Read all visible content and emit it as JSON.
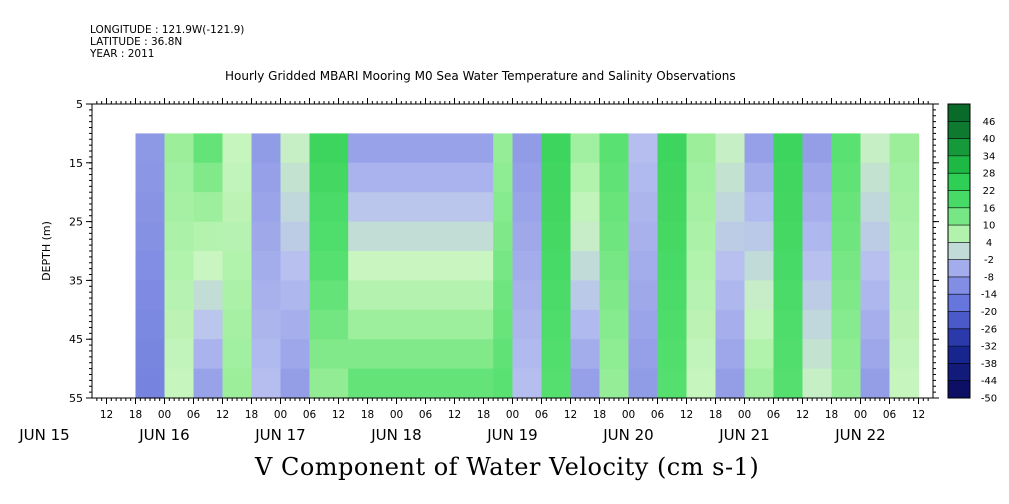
{
  "header": {
    "longitude": "LONGITUDE : 121.9W(-121.9)",
    "latitude": "LATITUDE : 36.8N",
    "year": "YEAR : 2011"
  },
  "chart_data": {
    "type": "heatmap",
    "title": "Hourly Gridded MBARI Mooring M0 Sea Water Temperature and Salinity Observations",
    "caption": "V Component of Water Velocity (cm s-1)",
    "ylabel": "DEPTH (m)",
    "xlabel": "",
    "ylim": [
      55,
      5
    ],
    "y_ticks": [
      5,
      15,
      25,
      35,
      45,
      55
    ],
    "data_depth_range": [
      10,
      55
    ],
    "x_hour_labels": [
      "12",
      "18",
      "00",
      "06",
      "12",
      "18",
      "00",
      "06",
      "12",
      "18",
      "00",
      "06",
      "12",
      "18",
      "00",
      "06",
      "12",
      "18",
      "00",
      "06",
      "12",
      "18",
      "00",
      "06",
      "12",
      "18",
      "00",
      "06",
      "12",
      "18",
      "00",
      "06"
    ],
    "x_day_labels": [
      "JUN 15",
      "JUN 16",
      "JUN 17",
      "JUN 18",
      "JUN 19",
      "JUN 20",
      "JUN 21",
      "JUN 22"
    ],
    "colorbar_levels": [
      "46",
      "40",
      "34",
      "28",
      "22",
      "16",
      "10",
      "4",
      "-2",
      "-8",
      "-14",
      "-20",
      "-26",
      "-32",
      "-38",
      "-44",
      "-50"
    ],
    "colors": {
      "neg_strong": "#1a2a9a",
      "neg": "#8f9ae6",
      "neutral": "#b9f0b0",
      "pos": "#33e060",
      "pos_strong": "#0a6a2a"
    },
    "columns": [
      {
        "from": "06-15 18",
        "to": "06-16 00",
        "v_top": -8,
        "v_bottom": -14
      },
      {
        "from": "06-16 00",
        "to": "06-16 06",
        "v_top": 10,
        "v_bottom": 4
      },
      {
        "from": "06-16 06",
        "to": "06-16 12",
        "v_top": 16,
        "v_bottom": -8
      },
      {
        "from": "06-16 12",
        "to": "06-16 18",
        "v_top": 4,
        "v_bottom": 10
      },
      {
        "from": "06-16 18",
        "to": "06-17 00",
        "v_top": -8,
        "v_bottom": -2
      },
      {
        "from": "06-17 00",
        "to": "06-17 06",
        "v_top": 4,
        "v_bottom": -8
      },
      {
        "from": "06-17 06",
        "to": "06-17 14",
        "v_top": 22,
        "v_bottom": 10
      },
      {
        "from": "06-17 14",
        "to": "06-18 20",
        "v_top": -8,
        "v_bottom": 16
      },
      {
        "from": "06-18 20",
        "to": "06-19 00",
        "v_top": 10,
        "v_bottom": 16
      },
      {
        "from": "06-19 00",
        "to": "06-19 06",
        "v_top": -8,
        "v_bottom": -2
      },
      {
        "from": "06-19 06",
        "to": "06-19 12",
        "v_top": 22,
        "v_bottom": 16
      },
      {
        "from": "06-19 12",
        "to": "06-19 18",
        "v_top": 10,
        "v_bottom": -8
      },
      {
        "from": "06-19 18",
        "to": "06-20 00",
        "v_top": 16,
        "v_bottom": 10
      },
      {
        "from": "06-20 00",
        "to": "06-20 06",
        "v_top": -2,
        "v_bottom": -8
      },
      {
        "from": "06-20 06",
        "to": "06-20 12",
        "v_top": 22,
        "v_bottom": 16
      },
      {
        "from": "06-20 12",
        "to": "06-20 18",
        "v_top": 10,
        "v_bottom": 4
      },
      {
        "from": "06-20 18",
        "to": "06-21 00",
        "v_top": 4,
        "v_bottom": -8
      },
      {
        "from": "06-21 00",
        "to": "06-21 06",
        "v_top": -8,
        "v_bottom": 10
      },
      {
        "from": "06-21 06",
        "to": "06-21 12",
        "v_top": 22,
        "v_bottom": 16
      },
      {
        "from": "06-21 12",
        "to": "06-21 18",
        "v_top": -8,
        "v_bottom": 4
      },
      {
        "from": "06-21 18",
        "to": "06-22 00",
        "v_top": 16,
        "v_bottom": 10
      },
      {
        "from": "06-22 00",
        "to": "06-22 06",
        "v_top": 4,
        "v_bottom": -8
      },
      {
        "from": "06-22 06",
        "to": "06-22 12",
        "v_top": 10,
        "v_bottom": 4
      }
    ]
  }
}
